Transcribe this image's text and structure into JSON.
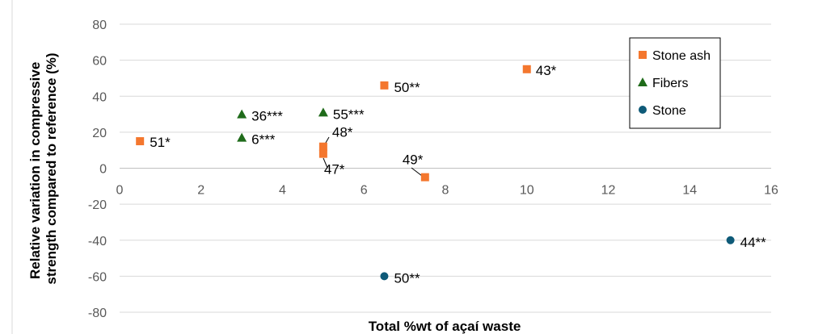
{
  "chart_data": {
    "type": "scatter",
    "title": "",
    "xlabel": "Total %wt of açaí waste",
    "ylabel": [
      "Relative variation in compressive",
      "strength compared to reference (%)"
    ],
    "xlim": [
      0,
      16
    ],
    "ylim": [
      -80,
      80
    ],
    "x_ticks": [
      "0",
      "2",
      "4",
      "6",
      "8",
      "10",
      "12",
      "14",
      "16"
    ],
    "y_ticks": [
      "80",
      "60",
      "40",
      "20",
      "0",
      "-20",
      "-40",
      "-60",
      "-80"
    ],
    "grid": "horizontal",
    "legend_position": "top-right",
    "series": [
      {
        "name": "Stone ash",
        "color": "#f4772e",
        "marker": "square",
        "points": [
          {
            "x": 0.5,
            "y": 15,
            "label": "51*"
          },
          {
            "x": 5.0,
            "y": 12,
            "label": "48*"
          },
          {
            "x": 5.0,
            "y": 8,
            "label": "47*"
          },
          {
            "x": 6.5,
            "y": 46,
            "label": "50**"
          },
          {
            "x": 7.5,
            "y": -5,
            "label": "49*"
          },
          {
            "x": 10.0,
            "y": 55,
            "label": "43*"
          }
        ]
      },
      {
        "name": "Fibers",
        "color": "#1f6b1a",
        "marker": "triangle",
        "points": [
          {
            "x": 3.0,
            "y": 30,
            "label": "36***"
          },
          {
            "x": 3.0,
            "y": 17,
            "label": "6***"
          },
          {
            "x": 5.0,
            "y": 31,
            "label": "55***"
          }
        ]
      },
      {
        "name": "Stone",
        "color": "#0e5a78",
        "marker": "circle",
        "points": [
          {
            "x": 6.5,
            "y": -60,
            "label": "50**"
          },
          {
            "x": 15.0,
            "y": -40,
            "label": "44**"
          }
        ]
      }
    ]
  }
}
